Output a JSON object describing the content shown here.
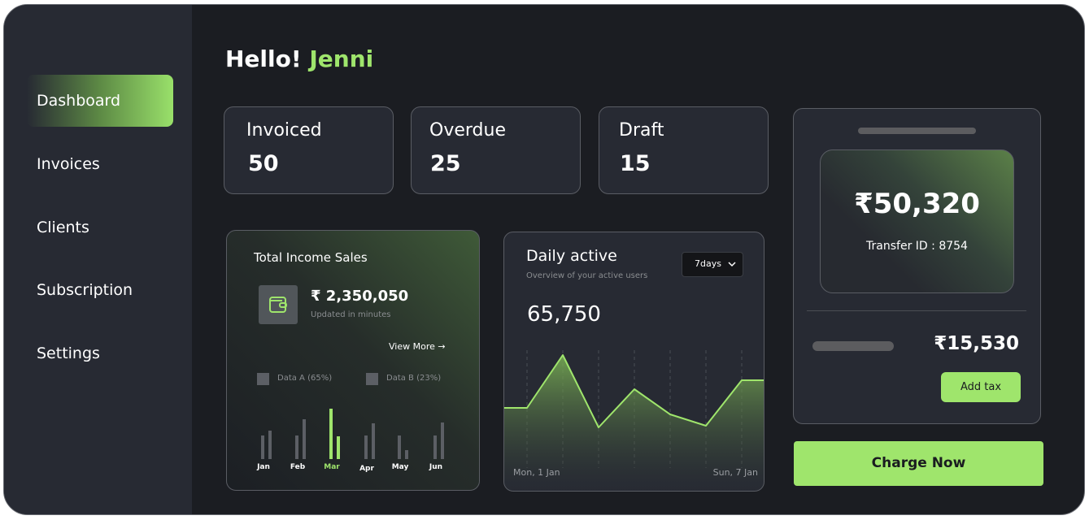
{
  "greeting": {
    "prefix": "Hello!",
    "name": "Jenni"
  },
  "sidebar": {
    "items": [
      {
        "label": "Dashboard",
        "active": true
      },
      {
        "label": "Invoices"
      },
      {
        "label": "Clients"
      },
      {
        "label": "Subscription"
      },
      {
        "label": "Settings"
      }
    ]
  },
  "stats": [
    {
      "label": "Invoiced",
      "value": "50"
    },
    {
      "label": "Overdue",
      "value": "25"
    },
    {
      "label": "Draft",
      "value": "15"
    }
  ],
  "income": {
    "title": "Total Income Sales",
    "amount": "₹ 2,350,050",
    "subtitle": "Updated in minutes",
    "view_more": "View More",
    "arrow": "→",
    "icon": "wallet-icon",
    "legend": [
      {
        "label": "Data A (65%)"
      },
      {
        "label": "Data B (23%)"
      }
    ]
  },
  "daily": {
    "title": "Daily active",
    "subtitle": "Overview of your active users",
    "value": "65,750",
    "range": "7days",
    "start_label": "Mon, 1 Jan",
    "end_label": "Sun, 7 Jan"
  },
  "transfer": {
    "amount": "₹50,320",
    "transfer_id": "Transfer ID : 8754",
    "sub_amount": "₹15,530",
    "add_tax": "Add tax",
    "charge_now": "Charge Now"
  },
  "colors": {
    "accent": "#9fe56c",
    "bg": "#1b1d22",
    "card": "#272a33",
    "bar_gray": "#5c5f65"
  },
  "chart_data": [
    {
      "type": "bar",
      "categories": [
        "Jan",
        "Feb",
        "Mar",
        "Apr",
        "May",
        "Jun"
      ],
      "highlight": "Mar",
      "series": [
        {
          "name": "Data A (65%)",
          "values": [
            29,
            29,
            62,
            29,
            29,
            29
          ]
        },
        {
          "name": "Data B (23%)",
          "values": [
            35,
            49,
            28,
            44,
            11,
            45
          ]
        }
      ]
    },
    {
      "type": "area",
      "x": [
        "Mon, 1 Jan",
        "",
        "",
        "",
        "",
        "",
        "Sun, 7 Jan"
      ],
      "values": [
        75,
        140,
        51,
        98,
        67,
        53,
        109
      ]
    }
  ]
}
